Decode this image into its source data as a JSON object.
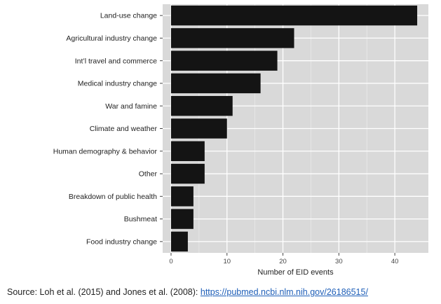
{
  "chart_data": {
    "type": "bar",
    "orientation": "horizontal",
    "categories": [
      "Land-use change",
      "Agricultural industry change",
      "Int’l travel and commerce",
      "Medical industry change",
      "War and famine",
      "Climate and weather",
      "Human demography & behavior",
      "Other",
      "Breakdown of public health",
      "Bushmeat",
      "Food industry change"
    ],
    "values": [
      44,
      22,
      19,
      16,
      11,
      10,
      6,
      6,
      4,
      4,
      3
    ],
    "xlabel": "Number of EID events",
    "ylabel": "",
    "xlim": [
      -1.5,
      46
    ],
    "xticks": [
      0,
      10,
      20,
      30,
      40
    ],
    "grid": true,
    "background_color": "#d9d9d9",
    "bar_color": "#141414"
  },
  "footer": {
    "source_prefix": "Source: Loh et al. (2015) and Jones et al. (2008): ",
    "source_link": "https://pubmed.ncbi.nlm.nih.gov/26186515/"
  }
}
